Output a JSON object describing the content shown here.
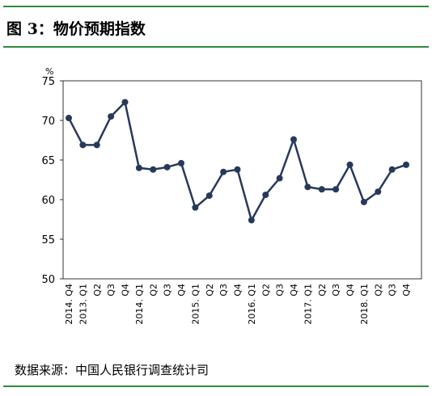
{
  "chart_data": {
    "type": "line",
    "title": "图 3：物价预期指数",
    "y_unit": "%",
    "source": "数据来源：中国人民银行调查统计司",
    "categories": [
      "2014. Q4",
      "2013. Q1",
      "Q2",
      "Q3",
      "Q4",
      "2014. Q1",
      "Q2",
      "Q3",
      "Q4",
      "2015. Q1",
      "Q2",
      "Q3",
      "Q4",
      "2016. Q1",
      "Q2",
      "Q3",
      "Q4",
      "2017. Q1",
      "Q2",
      "Q3",
      "Q4",
      "2018. Q1",
      "Q2",
      "Q3",
      "Q4"
    ],
    "values": [
      70.3,
      66.9,
      66.9,
      70.5,
      72.3,
      64.0,
      63.8,
      64.1,
      64.6,
      59.0,
      60.5,
      63.5,
      63.8,
      57.4,
      60.6,
      62.7,
      67.6,
      61.6,
      61.3,
      61.3,
      64.4,
      59.7,
      61.0,
      63.8,
      64.4
    ],
    "color": "#27395a",
    "ylim": [
      50,
      75
    ],
    "yticks": [
      50,
      55,
      60,
      65,
      70,
      75
    ],
    "grid": false
  }
}
